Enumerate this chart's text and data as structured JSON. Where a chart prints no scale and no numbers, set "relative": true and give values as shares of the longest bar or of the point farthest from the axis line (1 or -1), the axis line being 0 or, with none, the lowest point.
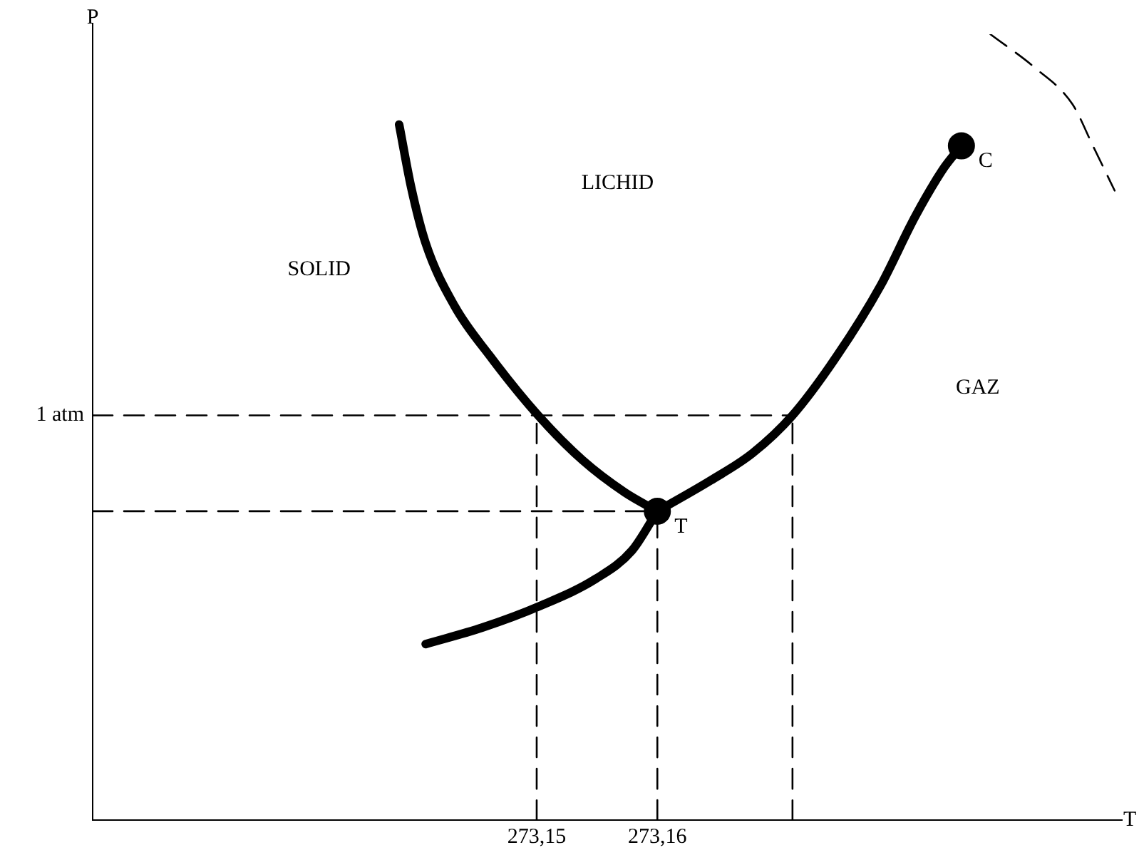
{
  "chart_data": {
    "type": "line",
    "xlabel": "T",
    "ylabel": "P",
    "relative": true,
    "tick_labels": "x",
    "xlim": [
      273.1132,
      273.1985
    ],
    "xticks": [
      {
        "value": 273.15,
        "label": "273,15"
      },
      {
        "value": 273.16,
        "label": "273,16"
      }
    ],
    "series": [
      {
        "type": "line",
        "color": "#000000",
        "line_style": "solid",
        "x": [
          273.1386,
          273.1396,
          273.1408,
          273.1432,
          273.1461,
          273.15,
          273.1538,
          273.1573,
          273.16
        ],
        "values": [
          0.885,
          0.805,
          0.734,
          0.654,
          0.591,
          0.517,
          0.458,
          0.417,
          0.393
        ]
      },
      {
        "type": "line",
        "color": "#000000",
        "line_style": "solid",
        "x": [
          273.16,
          273.1644,
          273.1679,
          273.1712,
          273.1749,
          273.1785,
          273.1814,
          273.1838,
          273.1852
        ],
        "values": [
          0.393,
          0.432,
          0.467,
          0.515,
          0.591,
          0.68,
          0.769,
          0.831,
          0.858
        ]
      },
      {
        "type": "line",
        "color": "#000000",
        "line_style": "solid",
        "x": [
          273.1408,
          273.1455,
          273.1502,
          273.1549,
          273.1579,
          273.16
        ],
        "values": [
          0.224,
          0.245,
          0.272,
          0.307,
          0.343,
          0.393
        ]
      },
      {
        "type": "line",
        "color": "#000000",
        "line_style": "dashed",
        "x": [
          273.1876,
          273.1914,
          273.1944,
          273.1961,
          273.1979
        ],
        "values": [
          1.0,
          0.956,
          0.911,
          0.858,
          0.801
        ]
      },
      {
        "type": "line",
        "color": "#000000",
        "line_style": "dashed",
        "x": [
          273.1132,
          273.1712
        ],
        "values": [
          0.515,
          0.515
        ]
      },
      {
        "type": "line",
        "color": "#000000",
        "line_style": "dashed",
        "x": [
          273.1132,
          273.16
        ],
        "values": [
          0.393,
          0.393
        ]
      },
      {
        "type": "line",
        "color": "#000000",
        "line_style": "dashed",
        "x": [
          273.15,
          273.15
        ],
        "values": [
          0,
          0.517
        ]
      },
      {
        "type": "line",
        "color": "#000000",
        "line_style": "dashed",
        "x": [
          273.16,
          273.16
        ],
        "values": [
          0,
          0.393
        ]
      },
      {
        "type": "line",
        "color": "#000000",
        "line_style": "dashed",
        "x": [
          273.1712,
          273.1712
        ],
        "values": [
          0,
          0.515
        ]
      },
      {
        "type": "scatter",
        "color": "#000000",
        "marker": "circle",
        "x": [
          273.16,
          273.1852
        ],
        "values": [
          0.393,
          0.858
        ]
      }
    ],
    "annotations": [
      "SOLID",
      "LICHID",
      "GAZ",
      {
        "text": "T",
        "x": 273.16,
        "y": 0.393
      },
      {
        "text": "C",
        "x": 273.1852,
        "y": 0.858
      },
      {
        "text": "1 atm",
        "x": 273.1132,
        "y": 0.515
      }
    ]
  }
}
